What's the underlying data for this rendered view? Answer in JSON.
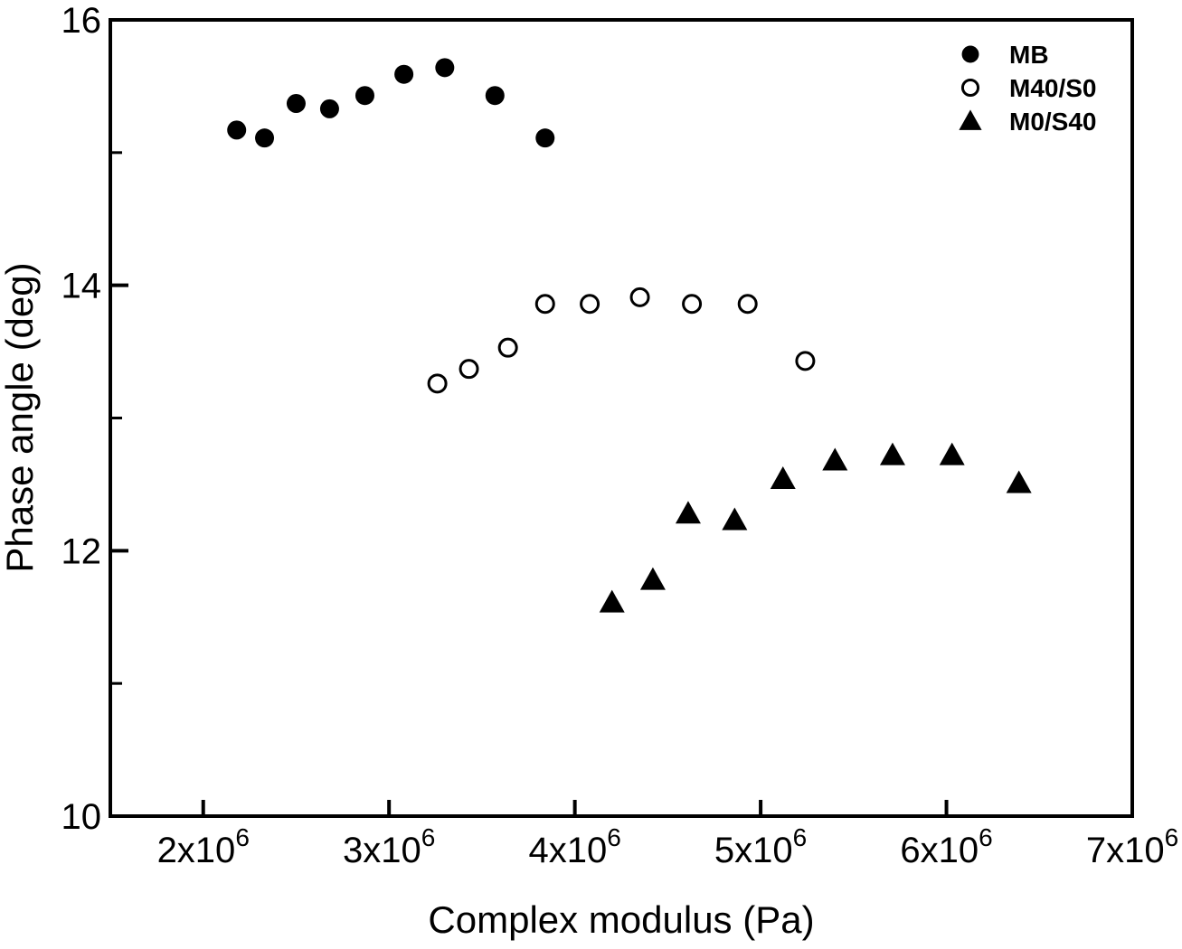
{
  "figure": {
    "background_color": "#ffffff",
    "foreground_color": "#000000"
  },
  "chart_data": {
    "type": "scatter",
    "title": "",
    "xlabel": "Complex modulus (Pa)",
    "ylabel": "Phase angle (deg)",
    "xlim": [
      1500000,
      7000000
    ],
    "ylim": [
      10,
      16
    ],
    "grid": false,
    "legend_position": "top-right-inside",
    "x_axis": {
      "label": "Complex modulus (Pa)",
      "ticks": [
        {
          "value": 2000000,
          "label": "2x10^6"
        },
        {
          "value": 3000000,
          "label": "3x10^6"
        },
        {
          "value": 4000000,
          "label": "4x10^6"
        },
        {
          "value": 5000000,
          "label": "5x10^6"
        },
        {
          "value": 6000000,
          "label": "6x10^6"
        },
        {
          "value": 7000000,
          "label": "7x10^6"
        }
      ]
    },
    "y_axis": {
      "label": "Phase angle (deg)",
      "ticks": [
        {
          "value": 10,
          "label": "10"
        },
        {
          "value": 12,
          "label": "12"
        },
        {
          "value": 14,
          "label": "14"
        },
        {
          "value": 16,
          "label": "16"
        }
      ],
      "minor_ticks": [
        11,
        13,
        15
      ]
    },
    "series": [
      {
        "name": "MB",
        "marker": "filled-circle",
        "color": "#000000",
        "points": [
          [
            2180000,
            15.17
          ],
          [
            2330000,
            15.11
          ],
          [
            2500000,
            15.37
          ],
          [
            2680000,
            15.33
          ],
          [
            2870000,
            15.43
          ],
          [
            3080000,
            15.59
          ],
          [
            3300000,
            15.64
          ],
          [
            3570000,
            15.43
          ],
          [
            3840000,
            15.11
          ]
        ]
      },
      {
        "name": "M40/S0",
        "marker": "open-circle",
        "color": "#000000",
        "points": [
          [
            3260000,
            13.26
          ],
          [
            3430000,
            13.37
          ],
          [
            3640000,
            13.53
          ],
          [
            3840000,
            13.86
          ],
          [
            4080000,
            13.86
          ],
          [
            4350000,
            13.91
          ],
          [
            4630000,
            13.86
          ],
          [
            4930000,
            13.86
          ],
          [
            5240000,
            13.43
          ]
        ]
      },
      {
        "name": "M0/S40",
        "marker": "filled-triangle",
        "color": "#000000",
        "points": [
          [
            4200000,
            11.61
          ],
          [
            4420000,
            11.78
          ],
          [
            4610000,
            12.28
          ],
          [
            4860000,
            12.23
          ],
          [
            5120000,
            12.54
          ],
          [
            5400000,
            12.68
          ],
          [
            5710000,
            12.72
          ],
          [
            6030000,
            12.72
          ],
          [
            6390000,
            12.51
          ]
        ]
      }
    ]
  }
}
